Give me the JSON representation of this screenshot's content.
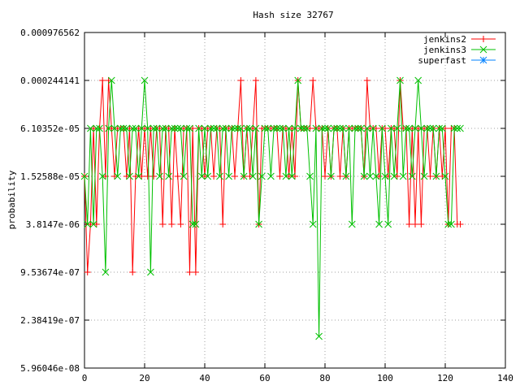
{
  "chart_data": {
    "type": "line",
    "title": "Hash size 32767",
    "ylabel": "probability",
    "xlabel": "",
    "xlim": [
      0,
      140
    ],
    "x_ticks": [
      {
        "value": 0,
        "label": "0"
      },
      {
        "value": 20,
        "label": "20"
      },
      {
        "value": 40,
        "label": "40"
      },
      {
        "value": 60,
        "label": "60"
      },
      {
        "value": 80,
        "label": "80"
      },
      {
        "value": 100,
        "label": "100"
      },
      {
        "value": 120,
        "label": "120"
      },
      {
        "value": 140,
        "label": "140"
      }
    ],
    "y_scale": "log2",
    "ylim": [
      5.96046e-08,
      0.000976562
    ],
    "y_ticks": [
      {
        "value": 0.000976562,
        "label": "0.000976562"
      },
      {
        "value": 0.000244141,
        "label": "0.000244141"
      },
      {
        "value": 6.10352e-05,
        "label": "6.10352e-05"
      },
      {
        "value": 1.52588e-05,
        "label": "1.52588e-05"
      },
      {
        "value": 3.8147e-06,
        "label": "3.8147e-06"
      },
      {
        "value": 9.53674e-07,
        "label": "9.53674e-07"
      },
      {
        "value": 2.38419e-07,
        "label": "2.38419e-07"
      },
      {
        "value": 5.96046e-08,
        "label": "5.96046e-08"
      }
    ],
    "legend_position": "top-right",
    "series": [
      {
        "name": "jenkins2",
        "color": "#ff0000",
        "marker": "plus",
        "x": [
          0,
          1,
          2,
          3,
          4,
          5,
          6,
          7,
          8,
          9,
          10,
          11,
          12,
          13,
          14,
          15,
          16,
          17,
          18,
          19,
          20,
          21,
          22,
          23,
          24,
          25,
          26,
          27,
          28,
          29,
          30,
          31,
          32,
          33,
          34,
          35,
          36,
          37,
          38,
          39,
          40,
          41,
          42,
          43,
          44,
          45,
          46,
          47,
          48,
          49,
          50,
          51,
          52,
          53,
          54,
          55,
          56,
          57,
          58,
          59,
          60,
          61,
          62,
          63,
          64,
          65,
          66,
          67,
          68,
          69,
          70,
          71,
          72,
          73,
          74,
          75,
          76,
          77,
          78,
          79,
          80,
          81,
          82,
          83,
          84,
          85,
          86,
          87,
          88,
          89,
          90,
          91,
          92,
          93,
          94,
          95,
          96,
          97,
          98,
          99,
          100,
          101,
          102,
          103,
          104,
          105,
          106,
          107,
          108,
          109,
          110,
          111,
          112,
          113,
          114,
          115,
          116,
          117,
          118,
          119,
          120,
          121,
          122,
          123,
          124,
          125
        ],
        "y": [
          1.52588e-05,
          9.53674e-07,
          3.8147e-06,
          6.10352e-05,
          3.8147e-06,
          6.10352e-05,
          0.000244141,
          1.52588e-05,
          0.000244141,
          6.10352e-05,
          1.52588e-05,
          6.10352e-05,
          6.10352e-05,
          6.10352e-05,
          1.52588e-05,
          6.10352e-05,
          9.53674e-07,
          1.52588e-05,
          6.10352e-05,
          1.52588e-05,
          6.10352e-05,
          1.52588e-05,
          6.10352e-05,
          1.52588e-05,
          6.10352e-05,
          6.10352e-05,
          3.8147e-06,
          6.10352e-05,
          6.10352e-05,
          3.8147e-06,
          6.10352e-05,
          1.52588e-05,
          3.8147e-06,
          6.10352e-05,
          6.10352e-05,
          9.53674e-07,
          6.10352e-05,
          9.53674e-07,
          6.10352e-05,
          6.10352e-05,
          1.52588e-05,
          6.10352e-05,
          6.10352e-05,
          1.52588e-05,
          6.10352e-05,
          6.10352e-05,
          3.8147e-06,
          6.10352e-05,
          6.10352e-05,
          6.10352e-05,
          1.52588e-05,
          6.10352e-05,
          0.000244141,
          1.52588e-05,
          6.10352e-05,
          1.52588e-05,
          6.10352e-05,
          0.000244141,
          3.8147e-06,
          6.10352e-05,
          6.10352e-05,
          6.10352e-05,
          6.10352e-05,
          6.10352e-05,
          6.10352e-05,
          1.52588e-05,
          6.10352e-05,
          6.10352e-05,
          1.52588e-05,
          6.10352e-05,
          1.52588e-05,
          0.000244141,
          6.10352e-05,
          6.10352e-05,
          6.10352e-05,
          6.10352e-05,
          0.000244141,
          6.10352e-05,
          6.10352e-05,
          6.10352e-05,
          1.52588e-05,
          6.10352e-05,
          1.52588e-05,
          6.10352e-05,
          6.10352e-05,
          1.52588e-05,
          6.10352e-05,
          1.52588e-05,
          6.10352e-05,
          6.10352e-05,
          6.10352e-05,
          6.10352e-05,
          6.10352e-05,
          1.52588e-05,
          0.000244141,
          6.10352e-05,
          6.10352e-05,
          6.10352e-05,
          1.52588e-05,
          6.10352e-05,
          6.10352e-05,
          1.52588e-05,
          6.10352e-05,
          6.10352e-05,
          1.52588e-05,
          0.000244141,
          6.10352e-05,
          6.10352e-05,
          3.8147e-06,
          6.10352e-05,
          3.8147e-06,
          6.10352e-05,
          3.8147e-06,
          6.10352e-05,
          6.10352e-05,
          1.52588e-05,
          6.10352e-05,
          1.52588e-05,
          6.10352e-05,
          1.52588e-05,
          6.10352e-05,
          3.8147e-06,
          6.10352e-05,
          6.10352e-05,
          3.8147e-06,
          3.8147e-06
        ]
      },
      {
        "name": "jenkins3",
        "color": "#00c000",
        "marker": "cross",
        "x": [
          0,
          1,
          2,
          3,
          4,
          5,
          6,
          7,
          8,
          9,
          10,
          11,
          12,
          13,
          14,
          15,
          16,
          17,
          18,
          19,
          20,
          21,
          22,
          23,
          24,
          25,
          26,
          27,
          28,
          29,
          30,
          31,
          32,
          33,
          34,
          35,
          36,
          37,
          38,
          39,
          40,
          41,
          42,
          43,
          44,
          45,
          46,
          47,
          48,
          49,
          50,
          51,
          52,
          53,
          54,
          55,
          56,
          57,
          58,
          59,
          60,
          61,
          62,
          63,
          64,
          65,
          66,
          67,
          68,
          69,
          70,
          71,
          72,
          73,
          74,
          75,
          76,
          77,
          78,
          79,
          80,
          81,
          82,
          83,
          84,
          85,
          86,
          87,
          88,
          89,
          90,
          91,
          92,
          93,
          94,
          95,
          96,
          97,
          98,
          99,
          100,
          101,
          102,
          103,
          104,
          105,
          106,
          107,
          108,
          109,
          110,
          111,
          112,
          113,
          114,
          115,
          116,
          117,
          118,
          119,
          120,
          121,
          122,
          123,
          124,
          125
        ],
        "y": [
          1.52588e-05,
          3.8147e-06,
          6.10352e-05,
          3.8147e-06,
          6.10352e-05,
          6.10352e-05,
          1.52588e-05,
          9.53674e-07,
          6.10352e-05,
          0.000244141,
          6.10352e-05,
          1.52588e-05,
          6.10352e-05,
          6.10352e-05,
          6.10352e-05,
          1.52588e-05,
          6.10352e-05,
          6.10352e-05,
          1.52588e-05,
          6.10352e-05,
          0.000244141,
          6.10352e-05,
          9.53674e-07,
          6.10352e-05,
          6.10352e-05,
          1.52588e-05,
          6.10352e-05,
          6.10352e-05,
          1.52588e-05,
          6.10352e-05,
          6.10352e-05,
          6.10352e-05,
          6.10352e-05,
          1.52588e-05,
          6.10352e-05,
          6.10352e-05,
          3.8147e-06,
          3.8147e-06,
          6.10352e-05,
          1.52588e-05,
          6.10352e-05,
          1.52588e-05,
          6.10352e-05,
          6.10352e-05,
          6.10352e-05,
          1.52588e-05,
          6.10352e-05,
          6.10352e-05,
          1.52588e-05,
          6.10352e-05,
          6.10352e-05,
          6.10352e-05,
          6.10352e-05,
          1.52588e-05,
          6.10352e-05,
          6.10352e-05,
          1.52588e-05,
          6.10352e-05,
          3.8147e-06,
          1.52588e-05,
          6.10352e-05,
          6.10352e-05,
          1.52588e-05,
          6.10352e-05,
          6.10352e-05,
          6.10352e-05,
          6.10352e-05,
          1.52588e-05,
          6.10352e-05,
          1.52588e-05,
          6.10352e-05,
          0.000244141,
          6.10352e-05,
          6.10352e-05,
          6.10352e-05,
          1.52588e-05,
          3.8147e-06,
          6.10352e-05,
          1.49012e-07,
          6.10352e-05,
          6.10352e-05,
          6.10352e-05,
          1.52588e-05,
          6.10352e-05,
          6.10352e-05,
          6.10352e-05,
          6.10352e-05,
          1.52588e-05,
          6.10352e-05,
          3.8147e-06,
          6.10352e-05,
          6.10352e-05,
          6.10352e-05,
          1.52588e-05,
          6.10352e-05,
          1.52588e-05,
          6.10352e-05,
          1.52588e-05,
          3.8147e-06,
          6.10352e-05,
          1.52588e-05,
          3.8147e-06,
          6.10352e-05,
          1.52588e-05,
          6.10352e-05,
          0.000244141,
          1.52588e-05,
          6.10352e-05,
          6.10352e-05,
          1.52588e-05,
          6.10352e-05,
          0.000244141,
          6.10352e-05,
          1.52588e-05,
          6.10352e-05,
          6.10352e-05,
          6.10352e-05,
          1.52588e-05,
          6.10352e-05,
          6.10352e-05,
          1.52588e-05,
          3.8147e-06,
          3.8147e-06,
          6.10352e-05,
          6.10352e-05,
          6.10352e-05
        ]
      },
      {
        "name": "superfast",
        "color": "#0080ff",
        "marker": "star",
        "x": [],
        "y": []
      }
    ]
  }
}
